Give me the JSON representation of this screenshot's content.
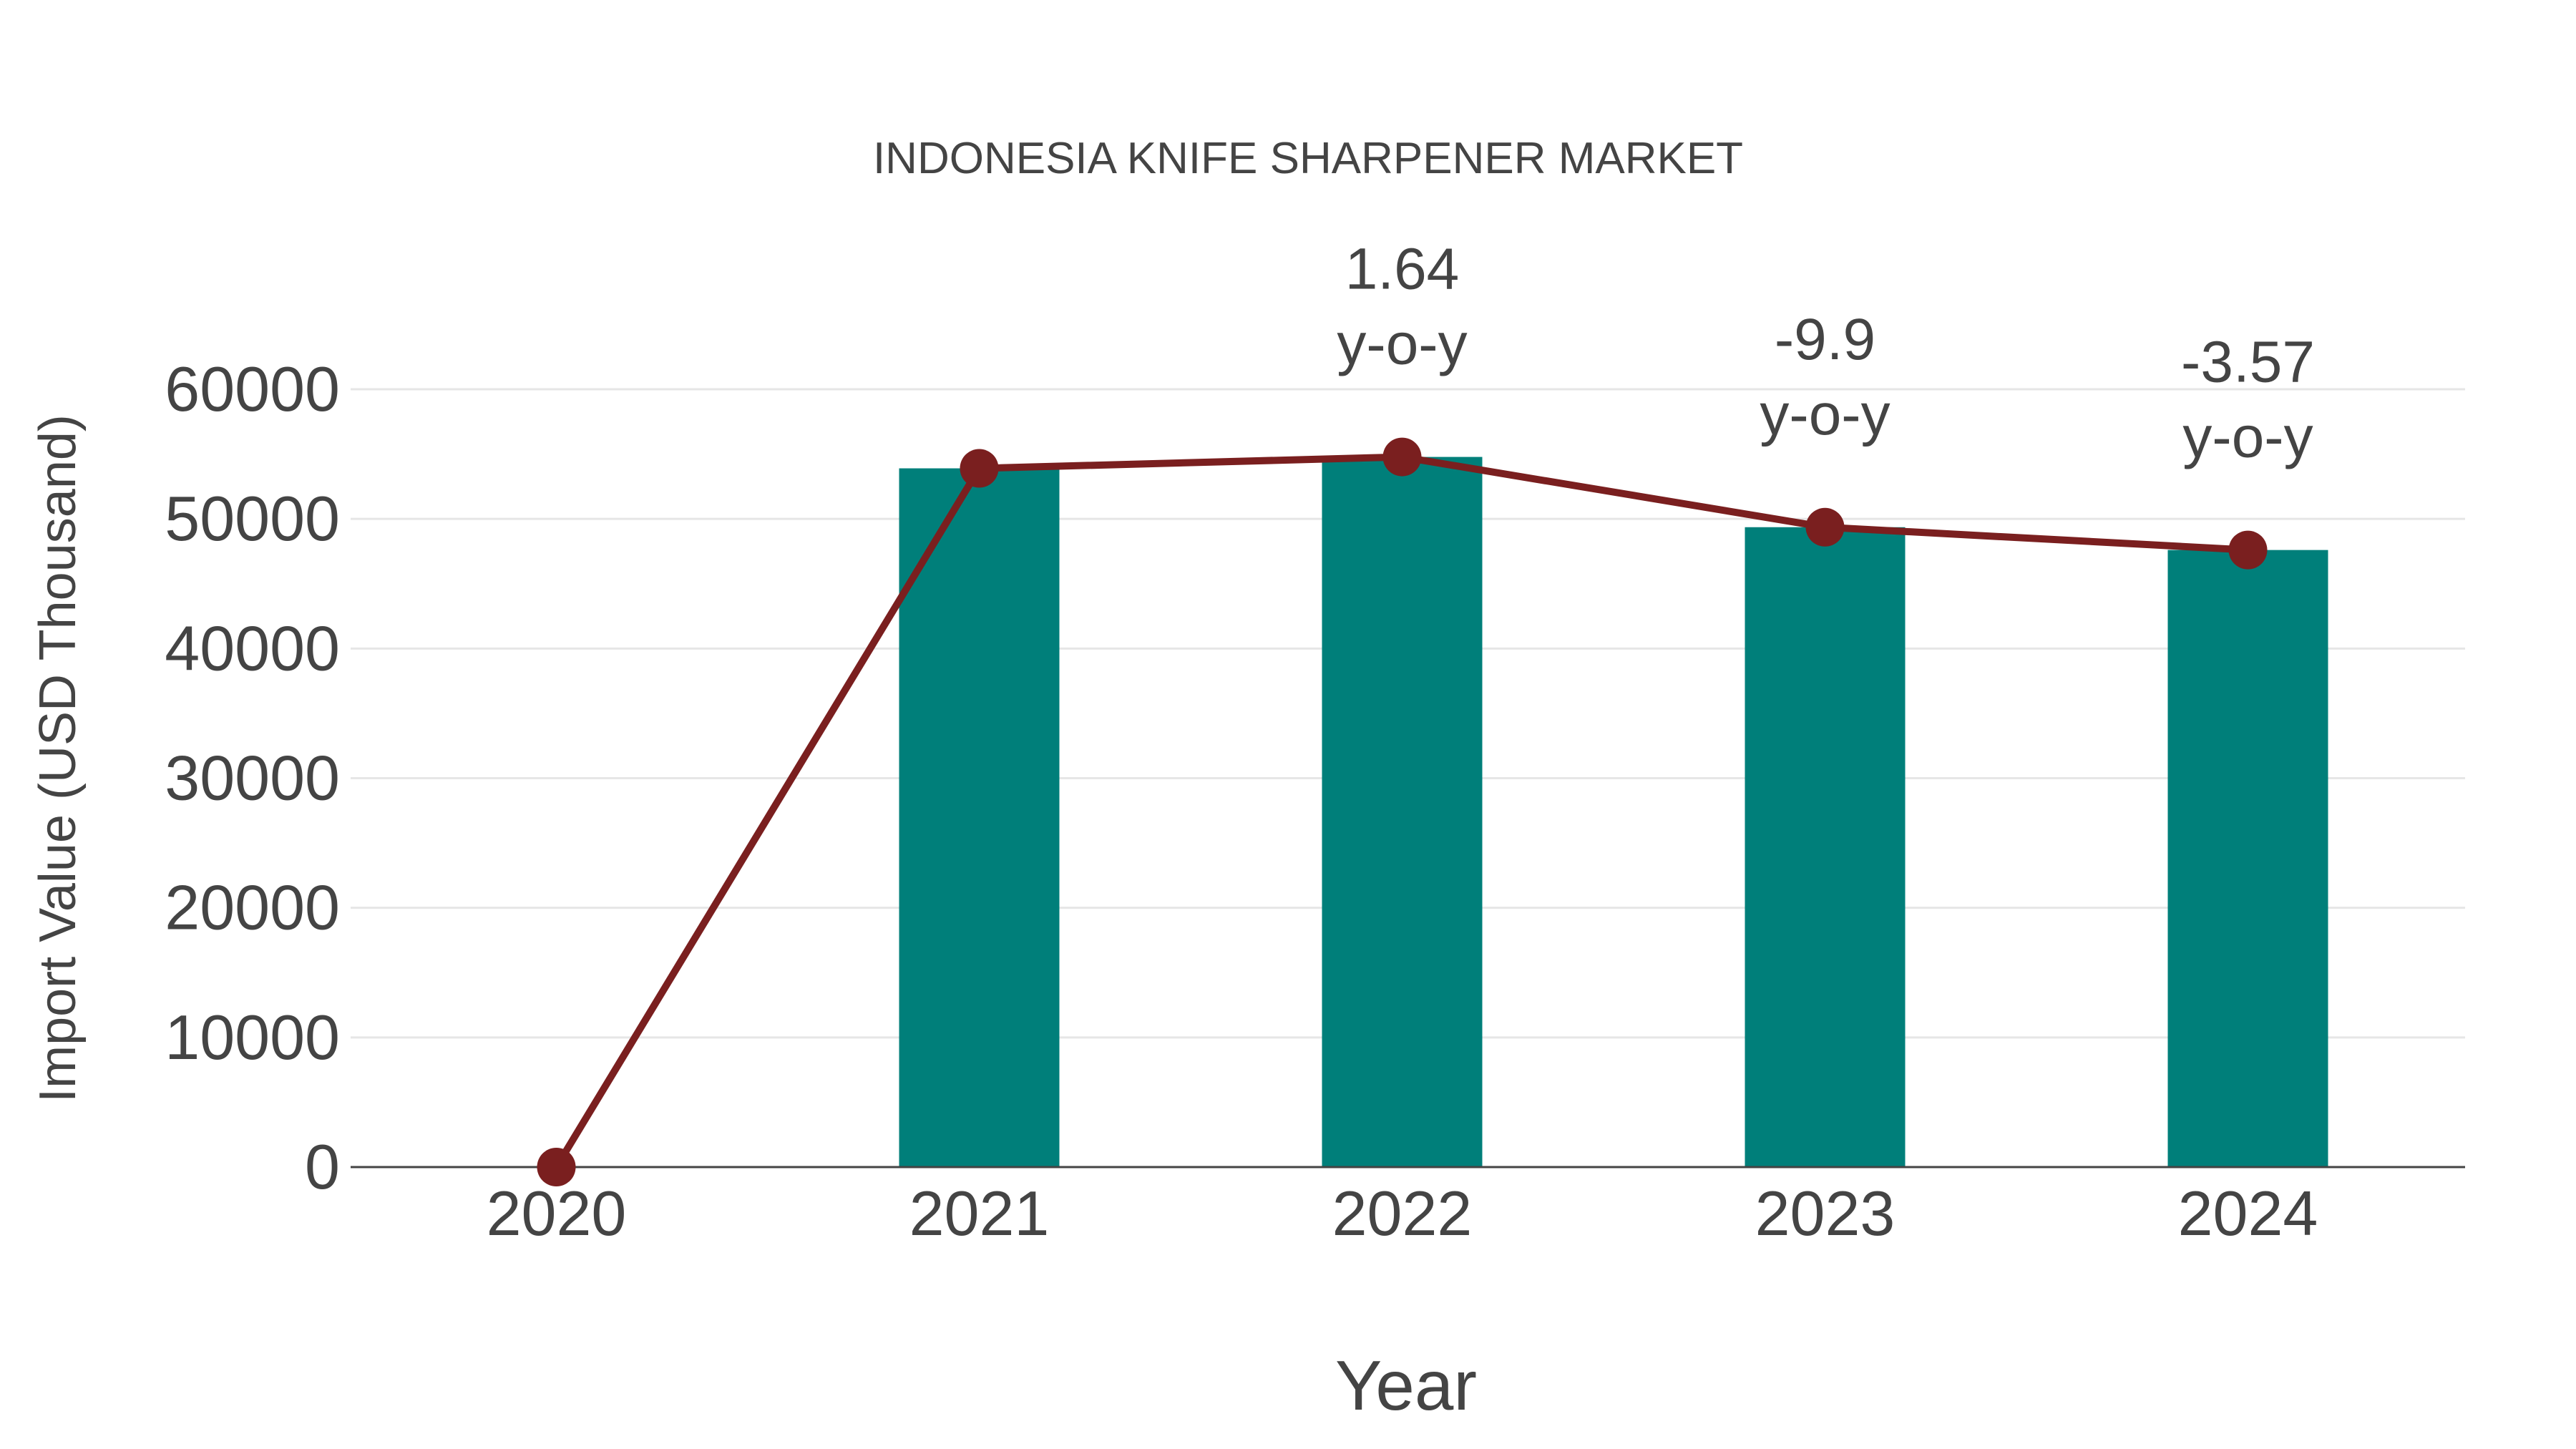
{
  "title": "INDONESIA KNIFE SHARPENER MARKET",
  "colors": {
    "bar": "#007f7a",
    "line": "#7a1f1f",
    "text": "#444444",
    "grid": "#e6e6e6"
  },
  "axes": {
    "x_title": "Year",
    "y_title": "Import Value (USD Thousand)",
    "y_ticks": [
      "0",
      "10000",
      "20000",
      "30000",
      "40000",
      "50000",
      "60000"
    ],
    "x_ticks": [
      "2020",
      "2021",
      "2022",
      "2023",
      "2024"
    ]
  },
  "annotations": [
    {
      "year": "2022",
      "value": "1.64",
      "label": "y-o-y"
    },
    {
      "year": "2023",
      "value": "-9.9",
      "label": "y-o-y"
    },
    {
      "year": "2024",
      "value": "-3.57",
      "label": "y-o-y"
    }
  ],
  "chart_data": {
    "type": "bar",
    "title": "INDONESIA KNIFE SHARPENER MARKET",
    "xlabel": "Year",
    "ylabel": "Import Value (USD Thousand)",
    "categories": [
      "2020",
      "2021",
      "2022",
      "2023",
      "2024"
    ],
    "series": [
      {
        "name": "Import Value (bar)",
        "type": "bar",
        "values": [
          0,
          53900,
          54780,
          49360,
          47600
        ]
      },
      {
        "name": "Import Value (line)",
        "type": "line",
        "values": [
          0,
          53900,
          54780,
          49360,
          47600
        ]
      }
    ],
    "annotations": [
      {
        "x": "2022",
        "text": "1.64 y-o-y"
      },
      {
        "x": "2023",
        "text": "-9.9 y-o-y"
      },
      {
        "x": "2024",
        "text": "-3.57 y-o-y"
      }
    ],
    "ylim": [
      0,
      62000
    ],
    "yticks": [
      0,
      10000,
      20000,
      30000,
      40000,
      50000,
      60000
    ],
    "grid": true,
    "legend": "none"
  }
}
